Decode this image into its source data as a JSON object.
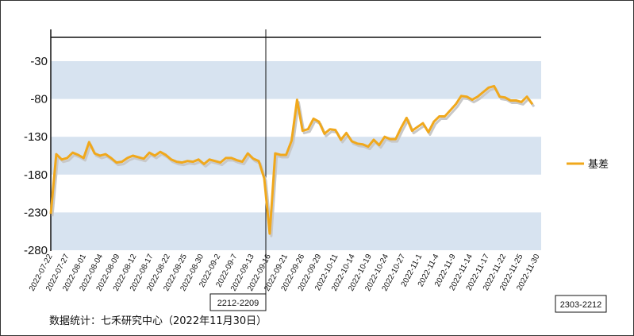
{
  "chart_data": {
    "type": "line",
    "series": [
      {
        "name": "基差",
        "color": "#f0a81c",
        "values": [
          -232,
          -153,
          -160,
          -158,
          -151,
          -154,
          -158,
          -137,
          -152,
          -155,
          -153,
          -158,
          -164,
          -163,
          -158,
          -155,
          -157,
          -159,
          -151,
          -155,
          -150,
          -154,
          -160,
          -163,
          -164,
          -162,
          -163,
          -160,
          -166,
          -160,
          -162,
          -164,
          -158,
          -158,
          -161,
          -163,
          -152,
          -159,
          -162,
          -185,
          -258,
          -152,
          -154,
          -154,
          -135,
          -81,
          -122,
          -120,
          -106,
          -110,
          -126,
          -120,
          -121,
          -134,
          -125,
          -136,
          -139,
          -140,
          -143,
          -134,
          -141,
          -130,
          -133,
          -133,
          -118,
          -105,
          -122,
          -117,
          -112,
          -124,
          -110,
          -103,
          -103,
          -95,
          -87,
          -76,
          -77,
          -81,
          -77,
          -71,
          -65,
          -63,
          -77,
          -78,
          -82,
          -82,
          -84,
          -77,
          -87
        ]
      }
    ],
    "ylim": [
      -280,
      -30
    ],
    "yticks": [
      "-30",
      "-80",
      "-130",
      "-180",
      "-230",
      "-280"
    ],
    "xticks": [
      "2022-07-22",
      "2022-07-27",
      "2022-08-01",
      "2022-08-04",
      "2022-08-09",
      "2022-08-12",
      "2022-08-17",
      "2022-08-22",
      "2022-08-25",
      "2022-08-30",
      "2022-09-2",
      "2022-09-7",
      "2022-09-13",
      "2022-09-16",
      "2022-09-21",
      "2022-09-26",
      "2022-09-29",
      "2022-10-11",
      "2022-10-14",
      "2022-10-19",
      "2022-10-24",
      "2022-10-27",
      "2022-11-1",
      "2022-11-4",
      "2022-11-9",
      "2022-11-14",
      "2022-11-17",
      "2022-11-22",
      "2022-11-25",
      "2022-11-30"
    ],
    "bands": "alternating light blue horizontal bands",
    "legend_position": "right",
    "contract_labels": [
      "2212-2209",
      "2303-2212"
    ]
  },
  "source": "数据统计：七禾研究中心（2022年11月30日）",
  "colors": {
    "band": "#d7e3f0",
    "line": "#f0a81c",
    "shadow": "#c8c8c8",
    "axis": "#111111"
  }
}
